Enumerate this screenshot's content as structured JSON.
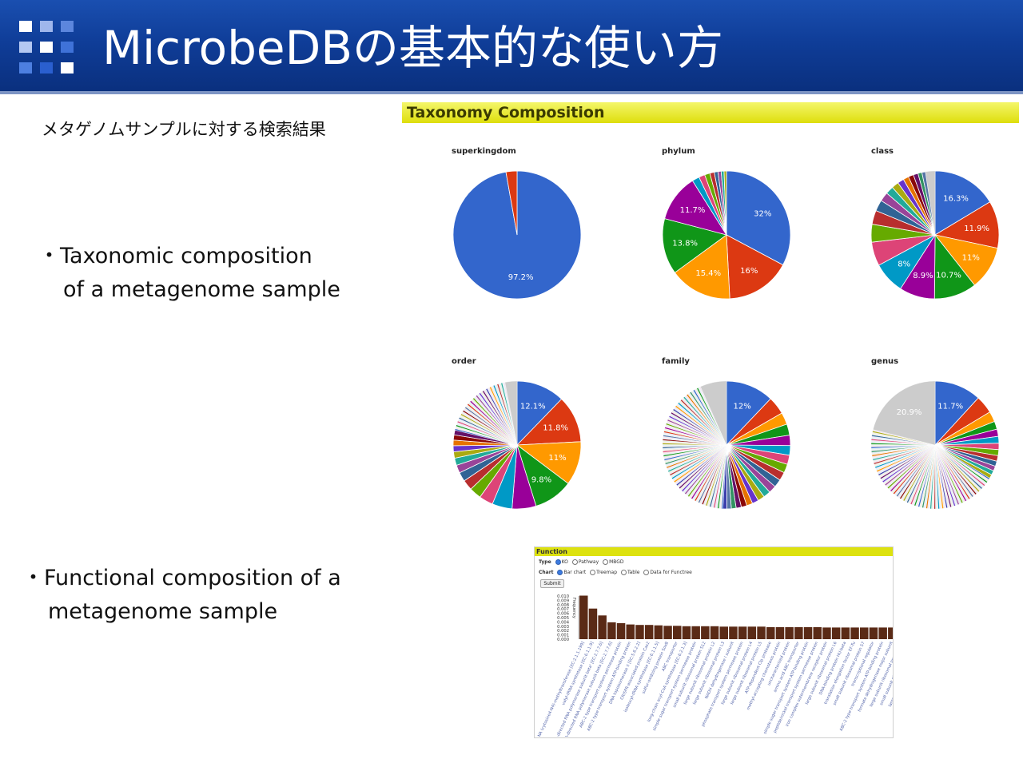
{
  "title": "MicrobeDBの基本的な使い方",
  "subtitle_jp": "メタゲノムサンプルに対する検索結果",
  "bullets": {
    "taxonomic": {
      "line1": "・Taxonomic composition",
      "line2": "of a metagenome sample"
    },
    "functional": {
      "line1": "・Functional composition of a",
      "line2": "metagenome sample"
    }
  },
  "colors": {
    "header": "#0f3d98",
    "accent_yellow": "#dede0c",
    "bar": "#5a2a16"
  },
  "taxonomy": {
    "panel_title": "Taxonomy Composition",
    "pies": [
      {
        "label": "superkingdom",
        "slices": [
          97.2,
          2.8
        ],
        "slice_labels": [
          "97.2%"
        ],
        "tail": 0,
        "tail_gray": 0
      },
      {
        "label": "phylum",
        "slices": [
          32,
          16,
          15.4,
          13.8,
          11.7,
          1.8,
          1.5,
          1.3,
          1.1,
          0.9,
          0.8,
          0.7,
          0.6
        ],
        "slice_labels": [
          "32%",
          "16%",
          "15.4%",
          "13.8%",
          "11.7%"
        ],
        "tail": 0,
        "tail_gray": 0
      },
      {
        "label": "class",
        "slices": [
          16.3,
          11.9,
          11,
          10.7,
          8.9,
          8,
          6,
          4.5,
          3.5,
          2.8,
          2.3,
          2,
          1.8,
          1.6,
          1.4,
          1.3,
          1.2,
          1.0,
          0.9
        ],
        "slice_labels": [
          "16.3%",
          "11.9%",
          "11%",
          "10.7%",
          "8.9%",
          "8%"
        ],
        "tail": 0,
        "tail_gray": 2.4
      },
      {
        "label": "order",
        "slices": [
          12.1,
          11.8,
          11,
          9.8,
          6,
          5,
          3.5,
          3,
          2.6,
          2.3,
          2,
          1.8,
          1.6,
          1.5,
          1.4,
          1.3,
          1.2
        ],
        "slice_labels": [
          "12.1%",
          "11.8%",
          "11%",
          "9.8%"
        ],
        "tail": 18,
        "tail_gray": 3
      },
      {
        "label": "family",
        "slices": [
          12,
          4.5,
          3,
          2.8,
          2.6,
          2.4,
          2.3,
          2.2,
          2.1,
          2.0,
          1.9,
          1.8,
          1.7,
          1.6,
          1.5,
          1.4,
          1.3,
          1.2,
          1.1,
          1.0
        ],
        "slice_labels": [
          "12%"
        ],
        "tail": 42,
        "tail_gray": 6.6
      },
      {
        "label": "genus",
        "slices": [
          11.7,
          4.5,
          2.6,
          2,
          1.8,
          1.7,
          1.6,
          1.5,
          1.4,
          1.3,
          1.2,
          1.1,
          1.0
        ],
        "slice_labels": [
          "11.7%"
        ],
        "tail": 44.7,
        "tail_gray": 20.9,
        "gray_label": "20.9%"
      }
    ]
  },
  "function_panel": {
    "title": "Function",
    "type_label": "Type",
    "type_options": [
      "KO",
      "Pathway",
      "MBGD"
    ],
    "chart_label": "Chart",
    "chart_options": [
      "Bar chart",
      "Treemap",
      "Table",
      "Data for Functree"
    ],
    "submit": "Submit",
    "ylabel": "Frequency",
    "yticks": [
      "0.010",
      "0.009",
      "0.008",
      "0.007",
      "0.006",
      "0.005",
      "0.004",
      "0.003",
      "0.002",
      "0.001",
      "0.000"
    ],
    "bar_values": [
      0.0101,
      0.0071,
      0.0055,
      0.0039,
      0.0037,
      0.0034,
      0.0033,
      0.0033,
      0.0032,
      0.0031,
      0.0031,
      0.003,
      0.003,
      0.003,
      0.003,
      0.0029,
      0.0029,
      0.0029,
      0.0029,
      0.0029,
      0.0028,
      0.0028,
      0.0028,
      0.0028,
      0.0028,
      0.0028,
      0.0027,
      0.0027,
      0.0027,
      0.0027,
      0.0027,
      0.0027,
      0.0027,
      0.0027,
      0.0027,
      0.0027,
      0.0027,
      0.0027,
      0.0027,
      0.0027
    ],
    "bar_labels": [
      "rRNA (cytosine4-N4)-methyltransferase [EC:2.1.1.199]",
      "valyl-tRNA synthetase [EC:6.1.1.9]",
      "DNA-directed RNA polymerase subunit beta' [EC:2.7.7.6]",
      "DNA-directed RNA polymerase subunit beta [EC:2.7.7.6]",
      "ABC-2 type transport system permease protein",
      "ABC-2 type transport system ATP-binding protein",
      "DNA topoisomerase II [EC:5.6.2.2]",
      "CRISPR-associated protein Cas2",
      "isoleucyl-tRNA synthetase [EC:6.1.1.5]",
      "sulfur-oxidizing protein SoxB",
      "ABC transporter",
      "long-chain acyl-CoA synthetase [EC:6.2.1.3]",
      "simple sugar transport system permease protein",
      "small subunit ribosomal protein S12",
      "large subunit ribosomal protein L2",
      "large subunit ribosomal protein L3",
      "NADH dehydrogenase I subunit",
      "phosphate transport system permease protein",
      "large subunit ribosomal protein L4",
      "large subunit ribosomal protein L5",
      "ATP-dependent Clp protease",
      "methyl-accepting chemotaxis protein",
      "uncharacterized protein",
      "amino acid ABC transporter",
      "simple sugar transport system ATP-binding protein",
      "peptide/nickel transport system permease protein",
      "iron complex outermembrane receptor protein",
      "large subunit ribosomal protein L6",
      "DNA-binding protein HU-beta",
      "translation elongation factor EF-Tu",
      "small subunit ribosomal protein S7",
      "transcriptional regulator",
      "ABC-2 type transport system ATP-binding protein",
      "formate dehydrogenase major subunit",
      "large subunit ribosomal protein L14",
      "small subunit ribosomal protein S3",
      "large subunit ribosomal protein L16",
      "elongation factor G",
      "ATP synthase F1 subunit beta",
      "50S ribosomal protein L22"
    ]
  }
}
